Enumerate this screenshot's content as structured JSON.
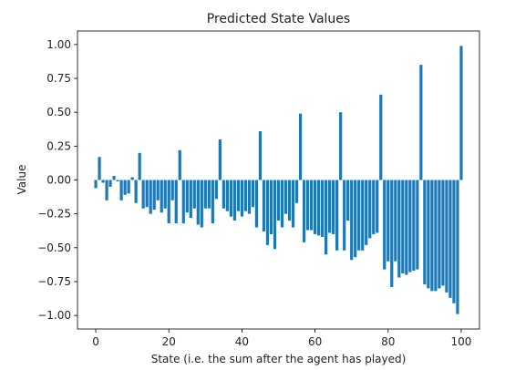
{
  "chart_data": {
    "type": "bar",
    "title": "Predicted State Values",
    "xlabel": "State (i.e. the sum after the agent has played)",
    "ylabel": "Value",
    "xlim": [
      -5,
      105
    ],
    "ylim": [
      -1.1,
      1.1
    ],
    "x_ticks": [
      0,
      20,
      40,
      60,
      80,
      100
    ],
    "x_tick_labels": [
      "0",
      "20",
      "40",
      "60",
      "80",
      "100"
    ],
    "y_ticks": [
      -1.0,
      -0.75,
      -0.5,
      -0.25,
      0.0,
      0.25,
      0.5,
      0.75,
      1.0
    ],
    "y_tick_labels": [
      "−1.00",
      "−0.75",
      "−0.50",
      "−0.25",
      "0.00",
      "0.25",
      "0.50",
      "0.75",
      "1.00"
    ],
    "grid": false,
    "bar_color": "#1f77b4",
    "x": [
      0,
      1,
      2,
      3,
      4,
      5,
      6,
      7,
      8,
      9,
      10,
      11,
      12,
      13,
      14,
      15,
      16,
      17,
      18,
      19,
      20,
      21,
      22,
      23,
      24,
      25,
      26,
      27,
      28,
      29,
      30,
      31,
      32,
      33,
      34,
      35,
      36,
      37,
      38,
      39,
      40,
      41,
      42,
      43,
      44,
      45,
      46,
      47,
      48,
      49,
      50,
      51,
      52,
      53,
      54,
      55,
      56,
      57,
      58,
      59,
      60,
      61,
      62,
      63,
      64,
      65,
      66,
      67,
      68,
      69,
      70,
      71,
      72,
      73,
      74,
      75,
      76,
      77,
      78,
      79,
      80,
      81,
      82,
      83,
      84,
      85,
      86,
      87,
      88,
      89,
      90,
      91,
      92,
      93,
      94,
      95,
      96,
      97,
      98,
      99,
      100
    ],
    "values": [
      -0.06,
      0.17,
      -0.02,
      -0.15,
      -0.05,
      0.03,
      -0.01,
      -0.15,
      -0.11,
      -0.1,
      0.02,
      -0.17,
      0.2,
      -0.21,
      -0.2,
      -0.25,
      -0.22,
      -0.15,
      -0.24,
      -0.21,
      -0.32,
      -0.15,
      -0.32,
      0.22,
      -0.32,
      -0.24,
      -0.28,
      -0.21,
      -0.33,
      -0.35,
      -0.21,
      -0.21,
      -0.32,
      -0.14,
      0.3,
      -0.21,
      -0.23,
      -0.27,
      -0.3,
      -0.23,
      -0.27,
      -0.23,
      -0.25,
      -0.2,
      -0.35,
      0.36,
      -0.38,
      -0.48,
      -0.4,
      -0.51,
      -0.3,
      -0.35,
      -0.25,
      -0.3,
      -0.35,
      -0.17,
      0.49,
      -0.46,
      -0.37,
      -0.37,
      -0.4,
      -0.41,
      -0.42,
      -0.55,
      -0.39,
      -0.4,
      -0.52,
      0.5,
      -0.52,
      -0.3,
      -0.59,
      -0.57,
      -0.52,
      -0.52,
      -0.48,
      -0.43,
      -0.4,
      -0.39,
      0.63,
      -0.66,
      -0.6,
      -0.79,
      -0.6,
      -0.72,
      -0.69,
      -0.7,
      -0.68,
      -0.67,
      -0.66,
      0.85,
      -0.77,
      -0.8,
      -0.82,
      -0.82,
      -0.8,
      -0.78,
      -0.83,
      -0.87,
      -0.91,
      -0.99,
      0.99
    ]
  }
}
